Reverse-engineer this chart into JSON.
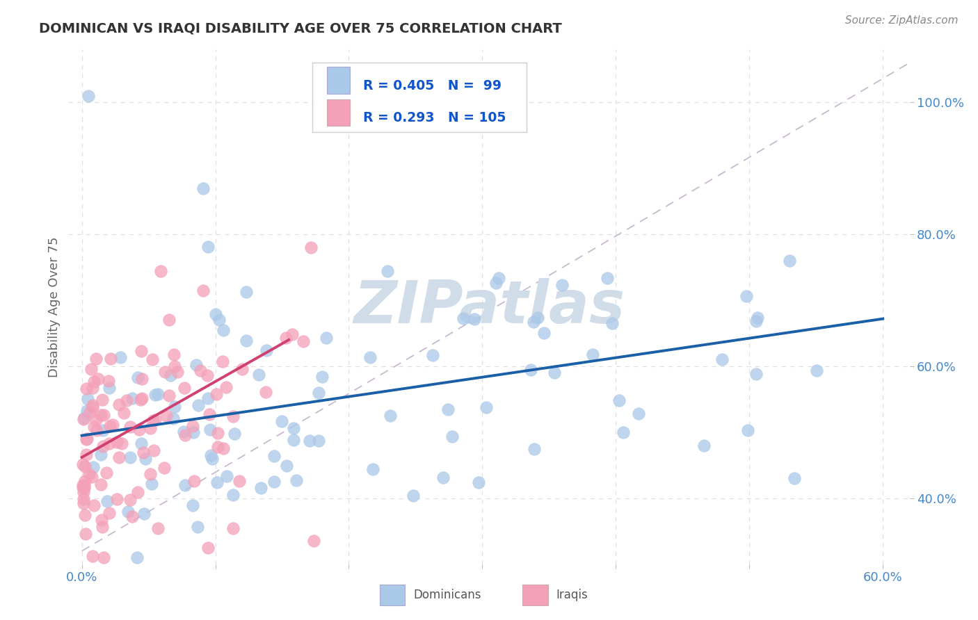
{
  "title": "DOMINICAN VS IRAQI DISABILITY AGE OVER 75 CORRELATION CHART",
  "source": "Source: ZipAtlas.com",
  "ylabel": "Disability Age Over 75",
  "xlim": [
    -0.01,
    0.62
  ],
  "ylim": [
    0.3,
    1.08
  ],
  "xticks": [
    0.0,
    0.1,
    0.2,
    0.3,
    0.4,
    0.5,
    0.6
  ],
  "xticklabels": [
    "0.0%",
    "",
    "",
    "",
    "",
    "",
    "60.0%"
  ],
  "yticks": [
    0.4,
    0.6,
    0.8,
    1.0
  ],
  "yticklabels": [
    "40.0%",
    "60.0%",
    "80.0%",
    "100.0%"
  ],
  "dominican_color": "#aac8e8",
  "iraqi_color": "#f4a0b8",
  "trend_dominican_color": "#1a5fa8",
  "trend_iraqi_color": "#d04070",
  "diagonal_color": "#c8b8d0",
  "diagonal_style": "dashed",
  "R_dominican": 0.405,
  "N_dominican": 99,
  "R_iraqi": 0.293,
  "N_iraqi": 105,
  "background_color": "#ffffff",
  "grid_color": "#e0e0e0",
  "grid_style": "dashed",
  "title_color": "#333333",
  "axis_label_color": "#666666",
  "tick_color": "#4488cc",
  "legend_label_color": "#1155cc",
  "watermark": "ZIPatlas",
  "watermark_color": "#d0dce8",
  "dom_trend_x": [
    0.0,
    0.6
  ],
  "dom_trend_y": [
    0.495,
    0.672
  ],
  "irq_trend_x": [
    0.0,
    0.155
  ],
  "irq_trend_y": [
    0.462,
    0.64
  ]
}
